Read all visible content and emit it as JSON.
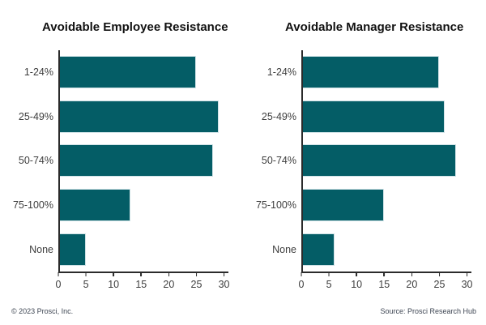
{
  "chart_data": [
    {
      "type": "bar",
      "orientation": "horizontal",
      "title": "Avoidable Employee Resistance",
      "categories": [
        "1-24%",
        "25-49%",
        "50-74%",
        "75-100%",
        "None"
      ],
      "values": [
        25,
        29,
        28,
        13,
        5
      ],
      "xlabel": "",
      "ylabel": "",
      "xlim": [
        0,
        30.8
      ],
      "xticks": [
        0,
        5,
        10,
        15,
        20,
        25,
        30
      ],
      "grid": false,
      "legend": "none",
      "bar_color": "#045d66"
    },
    {
      "type": "bar",
      "orientation": "horizontal",
      "title": "Avoidable Manager Resistance",
      "categories": [
        "1-24%",
        "25-49%",
        "50-74%",
        "75-100%",
        "None"
      ],
      "values": [
        25,
        26,
        28,
        15,
        6
      ],
      "xlabel": "",
      "ylabel": "",
      "xlim": [
        0,
        30.8
      ],
      "xticks": [
        0,
        5,
        10,
        15,
        20,
        25,
        30
      ],
      "grid": false,
      "legend": "none",
      "bar_color": "#045d66"
    }
  ],
  "footer": {
    "left": "© 2023 Prosci, Inc.",
    "right": "Source: Prosci Research Hub"
  },
  "colors": {
    "bar": "#045d66",
    "bar_edge": "#cfe2e6",
    "axis_line": "#2b2b2b",
    "label_text": "#3d3d3d",
    "title_text": "#111111",
    "footer_text": "#3e4653",
    "background": "#ffffff"
  }
}
